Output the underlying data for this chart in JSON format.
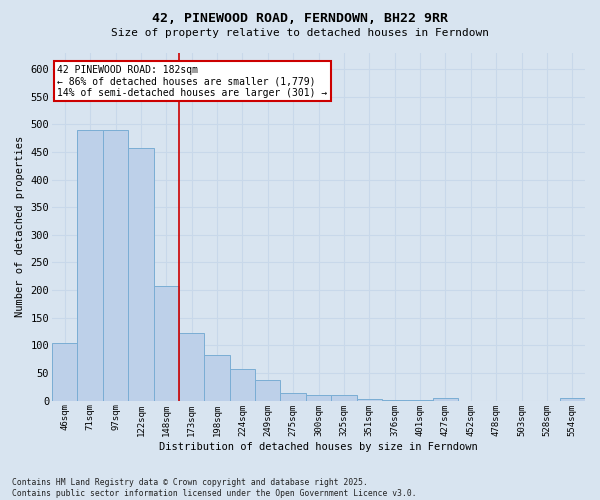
{
  "title": "42, PINEWOOD ROAD, FERNDOWN, BH22 9RR",
  "subtitle": "Size of property relative to detached houses in Ferndown",
  "xlabel": "Distribution of detached houses by size in Ferndown",
  "ylabel": "Number of detached properties",
  "footer_line1": "Contains HM Land Registry data © Crown copyright and database right 2025.",
  "footer_line2": "Contains public sector information licensed under the Open Government Licence v3.0.",
  "annotation_line1": "42 PINEWOOD ROAD: 182sqm",
  "annotation_line2": "← 86% of detached houses are smaller (1,779)",
  "annotation_line3": "14% of semi-detached houses are larger (301) →",
  "categories": [
    "46sqm",
    "71sqm",
    "97sqm",
    "122sqm",
    "148sqm",
    "173sqm",
    "198sqm",
    "224sqm",
    "249sqm",
    "275sqm",
    "300sqm",
    "325sqm",
    "351sqm",
    "376sqm",
    "401sqm",
    "427sqm",
    "452sqm",
    "478sqm",
    "503sqm",
    "528sqm",
    "554sqm"
  ],
  "values": [
    105,
    490,
    490,
    457,
    207,
    122,
    82,
    57,
    38,
    14,
    10,
    10,
    3,
    1,
    1,
    5,
    0,
    0,
    0,
    0,
    5
  ],
  "bar_color": "#bdd0e9",
  "bar_edge_color": "#7aadd4",
  "vline_color": "#cc0000",
  "vline_pos": 4.5,
  "annotation_box_color": "#cc0000",
  "background_color": "#d8e4f0",
  "grid_color": "#c8d8ea",
  "ylim": [
    0,
    630
  ],
  "yticks": [
    0,
    50,
    100,
    150,
    200,
    250,
    300,
    350,
    400,
    450,
    500,
    550,
    600
  ]
}
